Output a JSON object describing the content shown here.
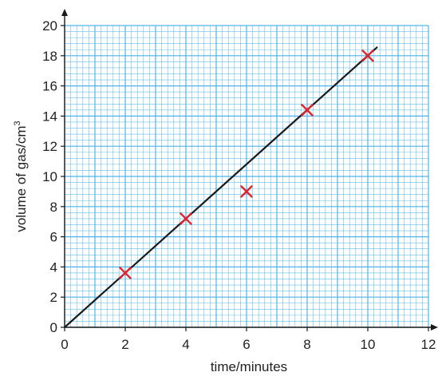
{
  "chart_data": {
    "type": "scatter",
    "xlabel": "time/minutes",
    "ylabel": "volume of gas/cm",
    "ylabel_superscript": "3",
    "xlim": [
      0,
      12
    ],
    "ylim": [
      0,
      20
    ],
    "x_ticks": [
      "0",
      "2",
      "4",
      "6",
      "8",
      "10",
      "12"
    ],
    "y_ticks": [
      "0",
      "2",
      "4",
      "6",
      "8",
      "10",
      "12",
      "14",
      "16",
      "18",
      "20"
    ],
    "grid": true,
    "grid_color": "#4fb3e8",
    "points": [
      {
        "x": 2,
        "y": 3.6
      },
      {
        "x": 4,
        "y": 7.2
      },
      {
        "x": 6,
        "y": 9
      },
      {
        "x": 8,
        "y": 14.4
      },
      {
        "x": 10,
        "y": 18
      }
    ],
    "marker": "x",
    "marker_color": "#e2212b",
    "best_fit_line": {
      "from": {
        "x": 0,
        "y": 0
      },
      "to": {
        "x": 10.3,
        "y": 18.55
      },
      "color": "#1a1a1a"
    }
  }
}
